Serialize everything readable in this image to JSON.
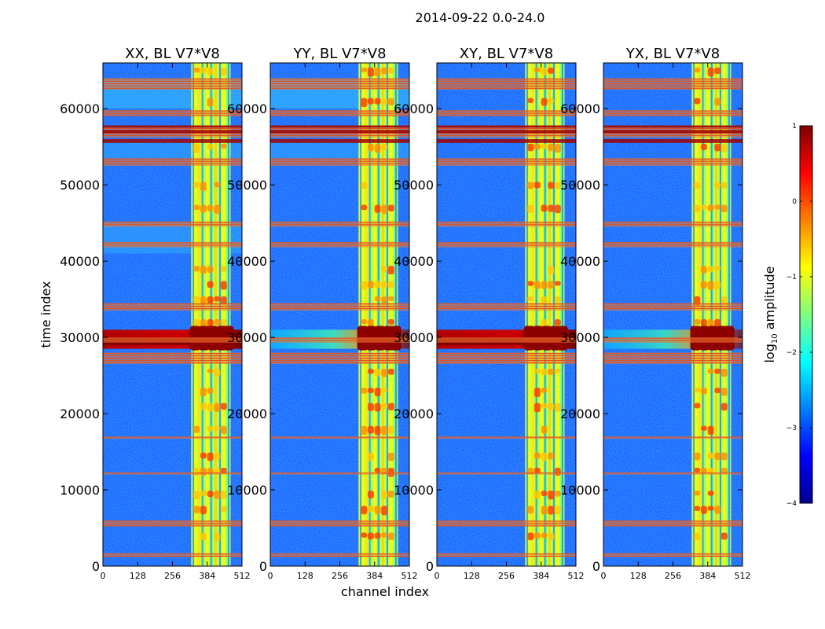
{
  "figure": {
    "suptitle": "2014-09-22 0.0-24.0"
  },
  "chart_data": {
    "type": "heatmap",
    "title": "2014-09-22 0.0-24.0",
    "xlabel": "channel index",
    "ylabel": "time index",
    "xlim": [
      0,
      512
    ],
    "ylim": [
      0,
      66000
    ],
    "x_ticks": [
      0,
      128,
      256,
      384,
      512
    ],
    "y_ticks": [
      0,
      10000,
      20000,
      30000,
      40000,
      50000,
      60000
    ],
    "panels": [
      {
        "title": "XX, BL V7*V8",
        "burst_extent": "wide",
        "burst_strength": 1.0
      },
      {
        "title": "YY, BL V7*V8",
        "burst_extent": "narrow",
        "burst_strength": 0.75
      },
      {
        "title": "XY, BL V7*V8",
        "burst_extent": "wide",
        "burst_strength": 1.0
      },
      {
        "title": "YX, BL V7*V8",
        "burst_extent": "narrow",
        "burst_strength": 0.7
      }
    ],
    "colorbar": {
      "label": "log",
      "label_sub": "10",
      "label_rest": " amplitude",
      "colormap": "jet",
      "range": [
        -4,
        1
      ],
      "ticks": [
        1,
        0,
        -1,
        -2,
        -3,
        -4
      ],
      "tick_labels": [
        "1",
        "0",
        "−1",
        "−2",
        "−3",
        "−4"
      ]
    },
    "rfi_channel_band": [
      325,
      470
    ],
    "rfi_channel_columns": [
      340,
      355,
      370,
      385,
      400,
      415,
      430,
      445,
      460
    ],
    "flagged_time_bands": [
      [
        62500,
        64000
      ],
      [
        59000,
        59800
      ],
      [
        56200,
        57800
      ],
      [
        52500,
        53500
      ],
      [
        44500,
        45200
      ],
      [
        41800,
        42500
      ],
      [
        33500,
        34500
      ],
      [
        29300,
        30000
      ],
      [
        26500,
        28000
      ],
      [
        16700,
        17000
      ],
      [
        12000,
        12300
      ],
      [
        5200,
        6000
      ],
      [
        1200,
        1700
      ]
    ],
    "burst_time_range": [
      28500,
      31000
    ],
    "burst_peak_log10_amplitude": 1,
    "background_log10_amplitude": -3.3
  }
}
